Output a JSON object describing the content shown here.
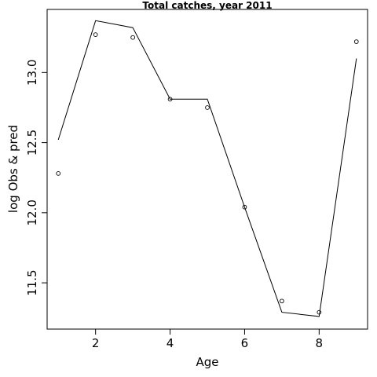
{
  "chart_data": {
    "type": "scatter",
    "title": "Total catches, year 2011",
    "xlabel": "Age",
    "ylabel": "log Obs & pred",
    "xlim": [
      0.7,
      9.3
    ],
    "ylim": [
      11.17,
      13.45
    ],
    "xticks": [
      2,
      4,
      6,
      8
    ],
    "yticks": [
      11.5,
      12.0,
      12.5,
      13.0
    ],
    "xtick_labels": [
      "2",
      "4",
      "6",
      "8"
    ],
    "ytick_labels": [
      "11.5",
      "12.0",
      "12.5",
      "13.0"
    ],
    "grid": false,
    "series": [
      {
        "style": "points",
        "x": [
          1,
          2,
          3,
          4,
          5,
          6,
          7,
          8,
          9
        ],
        "y": [
          12.28,
          13.27,
          13.25,
          12.81,
          12.75,
          12.04,
          11.37,
          11.29,
          13.22
        ]
      },
      {
        "style": "line",
        "x": [
          1,
          2,
          3,
          4,
          5,
          6,
          7,
          8,
          9
        ],
        "y": [
          12.52,
          13.37,
          13.32,
          12.81,
          12.81,
          12.04,
          11.29,
          11.26,
          13.1
        ]
      }
    ]
  }
}
